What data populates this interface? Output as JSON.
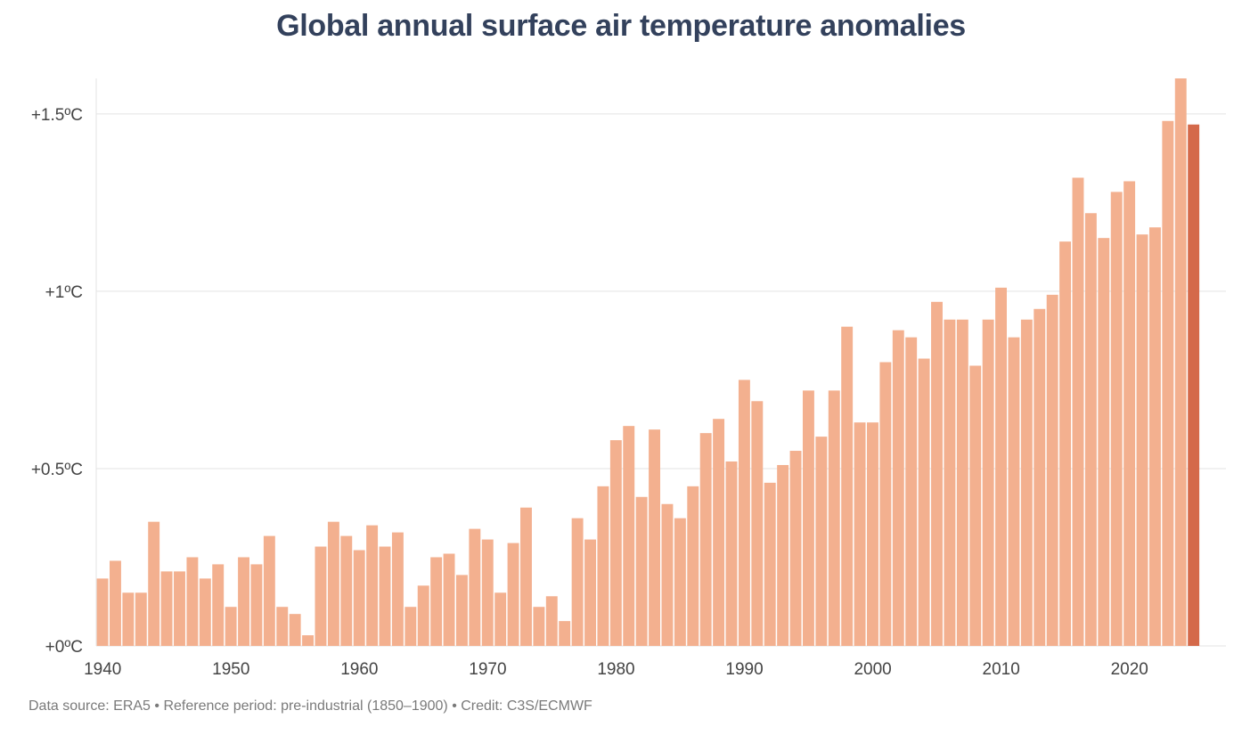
{
  "chart_data": {
    "type": "bar",
    "title": "Global annual surface air temperature anomalies",
    "xlabel": "",
    "ylabel": "",
    "ylim": [
      0,
      1.6
    ],
    "y_ticks": [
      0,
      0.5,
      1.0,
      1.5
    ],
    "y_tick_labels": [
      "+0ºC",
      "+0.5ºC",
      "+1ºC",
      "+1.5ºC"
    ],
    "x_tick_labels": [
      "1940",
      "1950",
      "1960",
      "1970",
      "1980",
      "1990",
      "2000",
      "2010",
      "2020"
    ],
    "grid": true,
    "colors": {
      "bar": "#f3b08f",
      "highlight": "#d4694a",
      "title": "#33415c"
    },
    "highlight_year": 2025,
    "years": [
      1940,
      1941,
      1942,
      1943,
      1944,
      1945,
      1946,
      1947,
      1948,
      1949,
      1950,
      1951,
      1952,
      1953,
      1954,
      1955,
      1956,
      1957,
      1958,
      1959,
      1960,
      1961,
      1962,
      1963,
      1964,
      1965,
      1966,
      1967,
      1968,
      1969,
      1970,
      1971,
      1972,
      1973,
      1974,
      1975,
      1976,
      1977,
      1978,
      1979,
      1980,
      1981,
      1982,
      1983,
      1984,
      1985,
      1986,
      1987,
      1988,
      1989,
      1990,
      1991,
      1992,
      1993,
      1994,
      1995,
      1996,
      1997,
      1998,
      1999,
      2000,
      2001,
      2002,
      2003,
      2004,
      2005,
      2006,
      2007,
      2008,
      2009,
      2010,
      2011,
      2012,
      2013,
      2014,
      2015,
      2016,
      2017,
      2018,
      2019,
      2020,
      2021,
      2022,
      2023,
      2024,
      2025
    ],
    "values": [
      0.19,
      0.24,
      0.15,
      0.15,
      0.35,
      0.21,
      0.21,
      0.25,
      0.19,
      0.23,
      0.11,
      0.25,
      0.23,
      0.31,
      0.11,
      0.09,
      0.03,
      0.28,
      0.35,
      0.31,
      0.27,
      0.34,
      0.28,
      0.32,
      0.11,
      0.17,
      0.25,
      0.26,
      0.2,
      0.33,
      0.3,
      0.15,
      0.29,
      0.39,
      0.11,
      0.14,
      0.07,
      0.36,
      0.3,
      0.45,
      0.58,
      0.62,
      0.42,
      0.61,
      0.4,
      0.36,
      0.45,
      0.6,
      0.64,
      0.52,
      0.75,
      0.69,
      0.46,
      0.51,
      0.55,
      0.72,
      0.59,
      0.72,
      0.9,
      0.63,
      0.63,
      0.8,
      0.89,
      0.87,
      0.81,
      0.97,
      0.92,
      0.92,
      0.79,
      0.92,
      1.01,
      0.87,
      0.92,
      0.95,
      0.99,
      1.14,
      1.32,
      1.22,
      1.15,
      1.28,
      1.31,
      1.16,
      1.18,
      1.48,
      1.6,
      1.47
    ]
  },
  "footer": {
    "credit": "Data source: ERA5 • Reference period: pre-industrial (1850–1900) • Credit: C3S/ECMWF"
  }
}
